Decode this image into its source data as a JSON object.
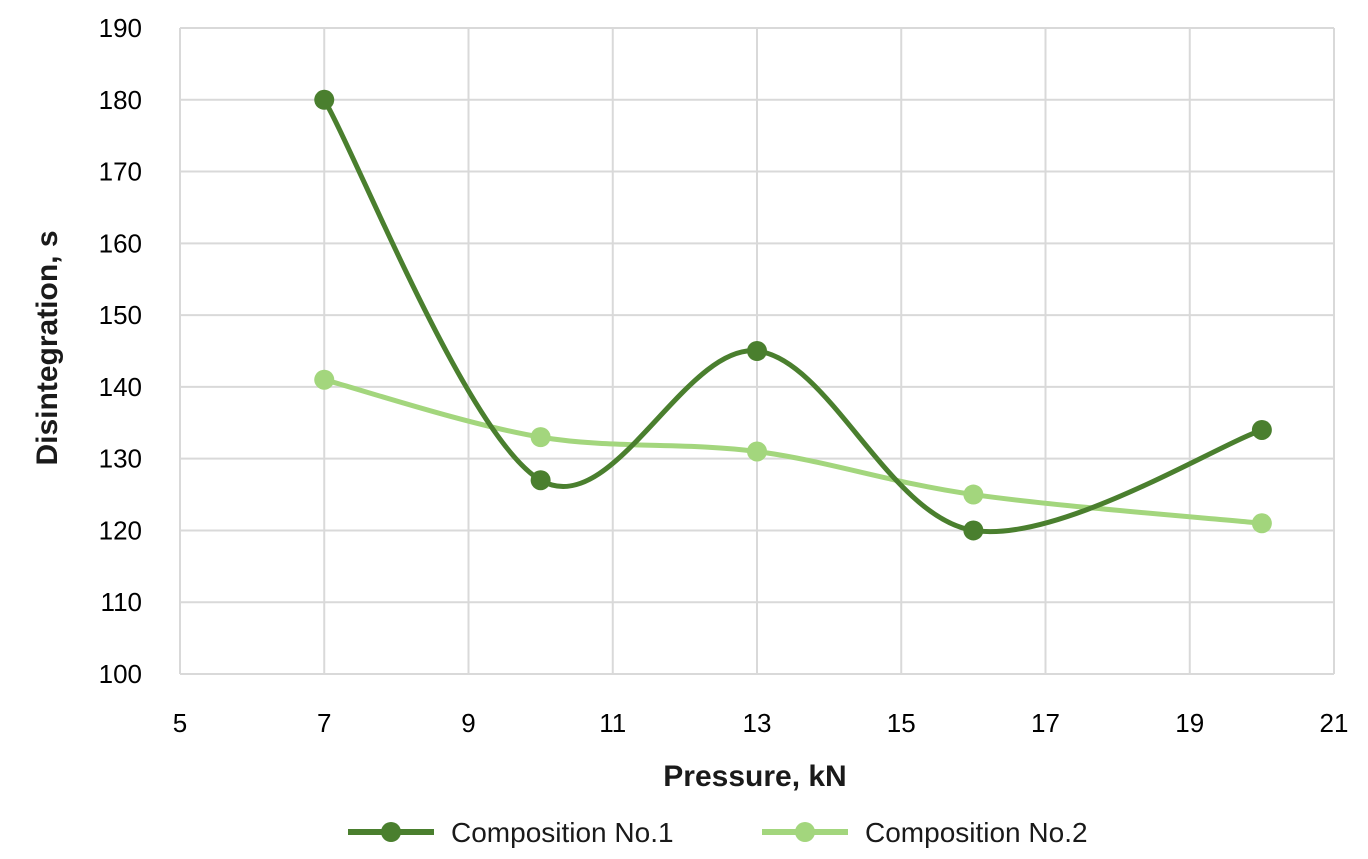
{
  "chart_data": {
    "type": "line",
    "title": "",
    "xlabel": "Pressure, kN",
    "ylabel": "Disintegration, s",
    "xlim": [
      5,
      21
    ],
    "ylim": [
      100,
      190
    ],
    "xticks": [
      5,
      7,
      9,
      11,
      13,
      15,
      17,
      19,
      21
    ],
    "yticks": [
      100,
      110,
      120,
      130,
      140,
      150,
      160,
      170,
      180,
      190
    ],
    "grid": true,
    "smooth": true,
    "legend": "bottom",
    "series": [
      {
        "name": "Composition No.1",
        "color": "#4a7f2e",
        "x": [
          7,
          10,
          13,
          16,
          20
        ],
        "y": [
          180,
          127,
          145,
          120,
          134
        ]
      },
      {
        "name": "Composition No.2",
        "color": "#a3d67d",
        "x": [
          7,
          10,
          13,
          16,
          20
        ],
        "y": [
          141,
          133,
          131,
          125,
          121
        ]
      }
    ]
  }
}
